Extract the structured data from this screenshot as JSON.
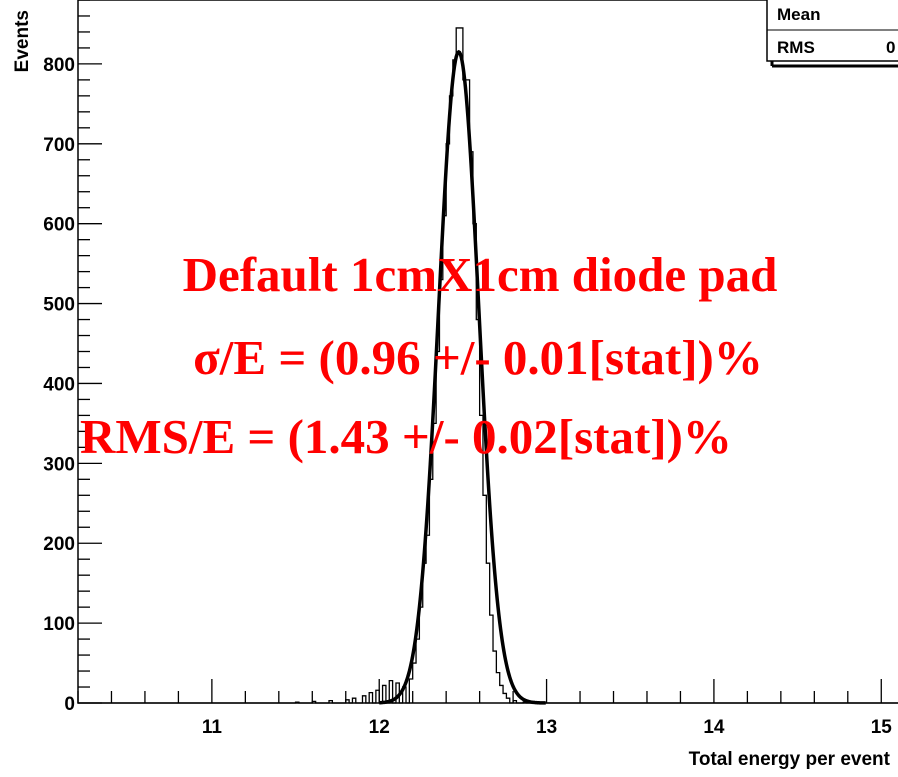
{
  "chart_data": {
    "type": "histogram",
    "xlabel": "Total energy per event",
    "ylabel": "Events",
    "xlim": [
      10.2,
      15.1
    ],
    "ylim": [
      0,
      880
    ],
    "x_ticks": [
      11,
      12,
      13,
      14,
      15
    ],
    "y_ticks": [
      0,
      100,
      200,
      300,
      400,
      500,
      600,
      700,
      800
    ],
    "grid": false,
    "stats_box": {
      "labels": [
        "Mean",
        "RMS"
      ],
      "visible_value_fragment": "0"
    },
    "annotation_lines": [
      "Default 1cmX1cm diode pad",
      "σ/E = (0.96 +/- 0.01[stat])%",
      "RMS/E = (1.43 +/- 0.02[stat])%"
    ],
    "bin_width": 0.02,
    "histogram_bins": [
      [
        11.5,
        1
      ],
      [
        11.6,
        2
      ],
      [
        11.7,
        3
      ],
      [
        11.8,
        4
      ],
      [
        11.84,
        6
      ],
      [
        11.9,
        9
      ],
      [
        11.94,
        13
      ],
      [
        11.98,
        16
      ],
      [
        12.02,
        22
      ],
      [
        12.06,
        28
      ],
      [
        12.1,
        25
      ],
      [
        12.14,
        20
      ],
      [
        12.18,
        30
      ],
      [
        12.2,
        50
      ],
      [
        12.22,
        80
      ],
      [
        12.24,
        120
      ],
      [
        12.26,
        175
      ],
      [
        12.28,
        210
      ],
      [
        12.3,
        280
      ],
      [
        12.32,
        350
      ],
      [
        12.34,
        440
      ],
      [
        12.36,
        530
      ],
      [
        12.38,
        610
      ],
      [
        12.4,
        700
      ],
      [
        12.42,
        760
      ],
      [
        12.44,
        805
      ],
      [
        12.46,
        845
      ],
      [
        12.48,
        845
      ],
      [
        12.5,
        780
      ],
      [
        12.52,
        780
      ],
      [
        12.54,
        690
      ],
      [
        12.56,
        600
      ],
      [
        12.58,
        480
      ],
      [
        12.6,
        360
      ],
      [
        12.62,
        260
      ],
      [
        12.64,
        175
      ],
      [
        12.66,
        110
      ],
      [
        12.68,
        65
      ],
      [
        12.7,
        38
      ],
      [
        12.72,
        22
      ],
      [
        12.74,
        12
      ],
      [
        12.76,
        6
      ],
      [
        12.8,
        3
      ],
      [
        12.86,
        1
      ]
    ],
    "fit_curve": {
      "type": "gaussian",
      "mean": 12.475,
      "sigma": 0.12,
      "amplitude": 815
    }
  }
}
